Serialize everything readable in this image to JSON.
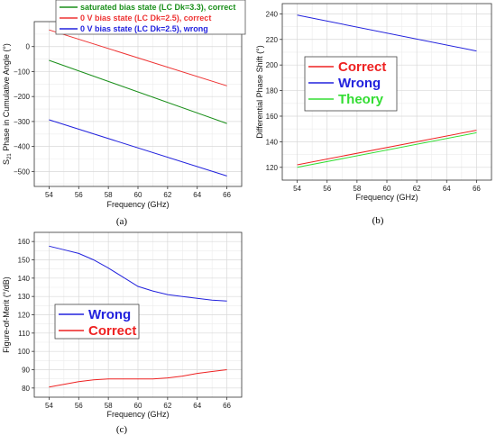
{
  "chart_data": [
    {
      "id": "a",
      "type": "line",
      "caption": "(a)",
      "xlabel": "Frequency (GHz)",
      "ylabel_main": "S",
      "ylabel_sub": "21",
      "ylabel_rest": " Phase in Cumulative Angle (°)",
      "xlim": [
        53,
        67
      ],
      "ylim": [
        -560,
        100
      ],
      "xticks": [
        54,
        56,
        58,
        60,
        62,
        64,
        66
      ],
      "yticks": [
        -500,
        -400,
        -300,
        -200,
        -100,
        0
      ],
      "ytick_labels": [
        "−500",
        "−400",
        "−300",
        "−200",
        "−100",
        "0"
      ],
      "grid": true,
      "legend_position": "top",
      "series": [
        {
          "name": "saturated bias state (LC Dk=3.3), correct",
          "color": "#1a8f1a",
          "x": [
            54,
            66
          ],
          "y": [
            -55,
            -308
          ]
        },
        {
          "name": "0 V bias state (LC Dk=2.5), correct",
          "color": "#ee3333",
          "x": [
            54,
            66
          ],
          "y": [
            67,
            -157
          ]
        },
        {
          "name": "0 V bias state (LC Dk=2.5), wrong",
          "color": "#2222dd",
          "x": [
            54,
            66
          ],
          "y": [
            -293,
            -518
          ]
        }
      ]
    },
    {
      "id": "b",
      "type": "line",
      "caption": "(b)",
      "xlabel": "Frequency (GHz)",
      "ylabel": "Differential Phase Shift (°)",
      "xlim": [
        53,
        67
      ],
      "ylim": [
        110,
        248
      ],
      "xticks": [
        54,
        56,
        58,
        60,
        62,
        64,
        66
      ],
      "yticks": [
        120,
        140,
        160,
        180,
        200,
        220,
        240
      ],
      "grid": true,
      "legend_position": "middle-left",
      "series": [
        {
          "name": "Correct",
          "color": "#ee2222",
          "x": [
            54,
            66
          ],
          "y": [
            122,
            149
          ]
        },
        {
          "name": "Wrong",
          "color": "#2222dd",
          "x": [
            54,
            66
          ],
          "y": [
            239,
            211
          ]
        },
        {
          "name": "Theory",
          "color": "#33dd33",
          "x": [
            54,
            66
          ],
          "y": [
            120,
            147
          ]
        }
      ]
    },
    {
      "id": "c",
      "type": "line",
      "caption": "(c)",
      "xlabel": "Frequency (GHz)",
      "ylabel": "Figure-of-Merit (°/dB)",
      "xlim": [
        53,
        67
      ],
      "ylim": [
        75,
        165
      ],
      "xticks": [
        54,
        56,
        58,
        60,
        62,
        64,
        66
      ],
      "yticks": [
        80,
        90,
        100,
        110,
        120,
        130,
        140,
        150,
        160
      ],
      "grid": true,
      "legend_position": "middle-left",
      "series": [
        {
          "name": "Wrong",
          "color": "#2222dd",
          "x": [
            54,
            55,
            56,
            57,
            58,
            59,
            60,
            61,
            62,
            63,
            64,
            65,
            66
          ],
          "y": [
            157.5,
            155.5,
            153.5,
            150,
            145.5,
            140.5,
            135.5,
            133,
            131,
            130,
            129,
            128,
            127.5
          ]
        },
        {
          "name": "Correct",
          "color": "#ee2222",
          "x": [
            54,
            55,
            56,
            57,
            58,
            59,
            60,
            61,
            62,
            63,
            64,
            65,
            66
          ],
          "y": [
            80.5,
            82,
            83.5,
            84.5,
            85,
            85,
            85,
            85,
            85.5,
            86.5,
            88,
            89,
            90
          ]
        }
      ]
    }
  ]
}
